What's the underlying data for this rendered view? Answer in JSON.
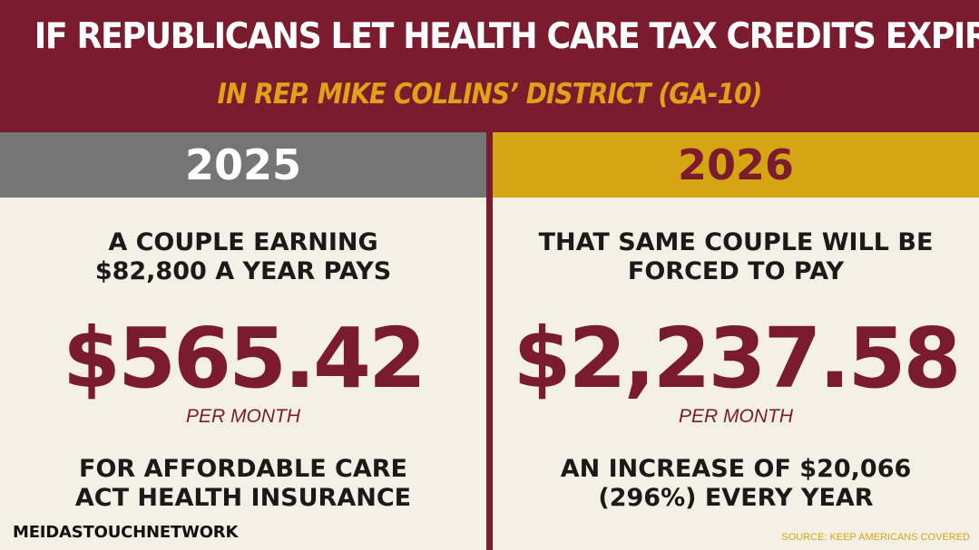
{
  "header": {
    "title": "IF REPUBLICANS LET HEALTH CARE TAX CREDITS EXPIRE",
    "subtitle": "IN REP. MIKE COLLINS’ DISTRICT (GA-10)"
  },
  "left": {
    "year": "2025",
    "lead_line1": "A COUPLE EARNING",
    "lead_line2": "$82,800 A YEAR PAYS",
    "amount": "$565.42",
    "per": "PER MONTH",
    "foot_line1": "FOR AFFORDABLE CARE",
    "foot_line2": "ACT HEALTH INSURANCE"
  },
  "right": {
    "year": "2026",
    "lead_line1": "THAT SAME COUPLE WILL BE",
    "lead_line2": "FORCED TO PAY",
    "amount": "$2,237.58",
    "per": "PER MONTH",
    "foot_line1": "AN INCREASE OF $20,066",
    "foot_line2": "(296%) EVERY YEAR"
  },
  "footer": {
    "brand": "MEIDASTOUCHNETWORK",
    "source": "SOURCE: KEEP AMERICANS COVERED"
  },
  "colors": {
    "maroon": "#7a1c2e",
    "gold": "#d6a514",
    "gray": "#757575",
    "background": "#f4f0e6"
  }
}
